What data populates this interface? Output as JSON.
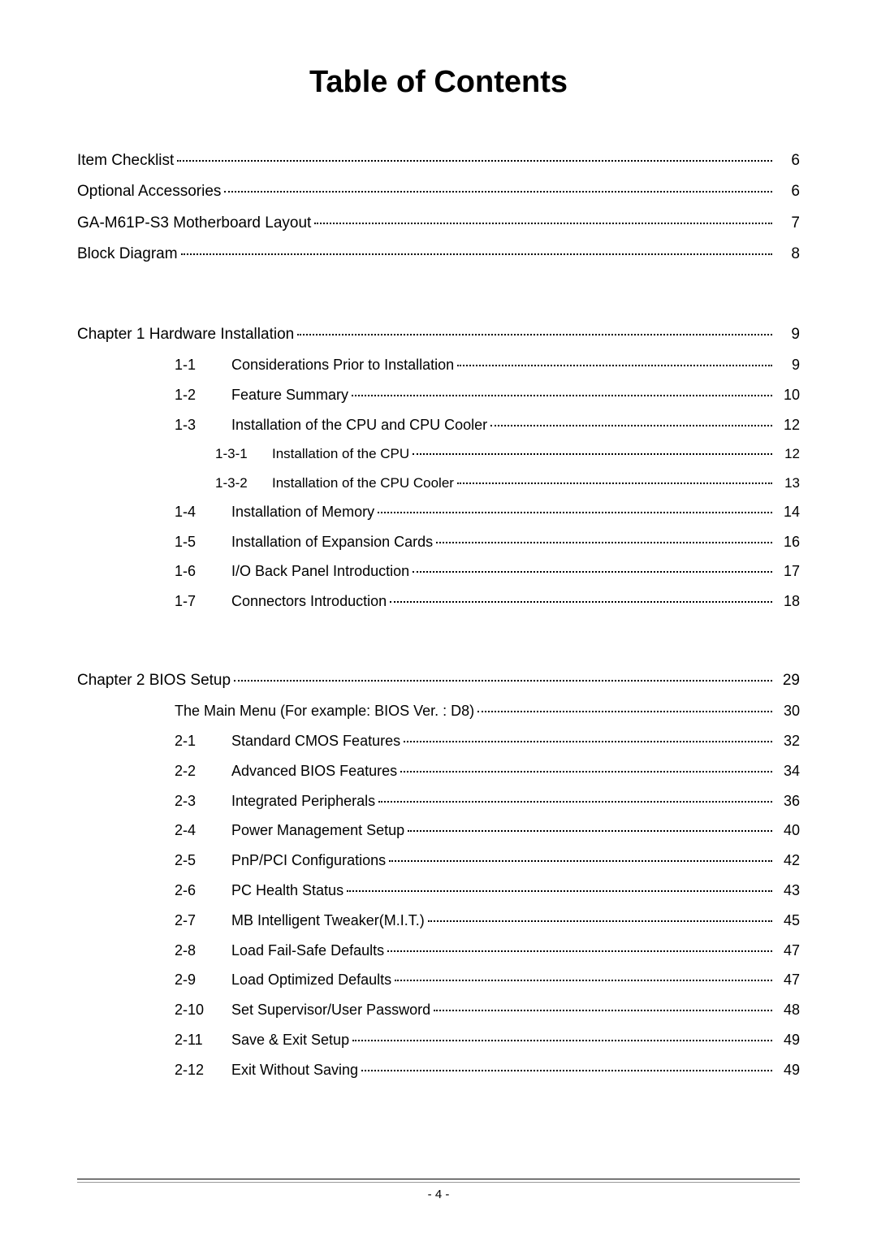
{
  "title": "Table of Contents",
  "colors": {
    "background": "#ffffff",
    "text": "#000000",
    "dots": "#000000"
  },
  "typography": {
    "title_fontsize": 38,
    "body_fontsize": 18,
    "font_family": "Arial"
  },
  "front_matter": [
    {
      "label": "Item Checklist",
      "page": "6"
    },
    {
      "label": "Optional Accessories",
      "page": "6"
    },
    {
      "label": "GA-M61P-S3 Motherboard Layout",
      "page": "7"
    },
    {
      "label": "Block Diagram",
      "page": "8"
    }
  ],
  "chapters": [
    {
      "label": "Chapter 1  Hardware Installation",
      "page": "9",
      "sections": [
        {
          "num": "1-1",
          "label": "Considerations Prior to Installation",
          "page": "9"
        },
        {
          "num": "1-2",
          "label": "Feature Summary",
          "page": "10"
        },
        {
          "num": "1-3",
          "label": "Installation of the CPU and CPU Cooler",
          "page": "12",
          "subsections": [
            {
              "num": "1-3-1",
              "label": "Installation of the CPU",
              "page": "12"
            },
            {
              "num": "1-3-2",
              "label": "Installation of the CPU Cooler",
              "page": "13"
            }
          ]
        },
        {
          "num": "1-4",
          "label": "Installation of Memory",
          "page": "14"
        },
        {
          "num": "1-5",
          "label": "Installation of Expansion Cards",
          "page": "16"
        },
        {
          "num": "1-6",
          "label": "I/O Back Panel Introduction",
          "page": "17"
        },
        {
          "num": "1-7",
          "label": "Connectors Introduction",
          "page": "18"
        }
      ]
    },
    {
      "label": "Chapter 2  BIOS Setup",
      "page": "29",
      "pre_sections": [
        {
          "label": "The Main Menu (For example: BIOS Ver. : D8)",
          "page": "30"
        }
      ],
      "sections": [
        {
          "num": "2-1",
          "label": "Standard CMOS Features",
          "page": "32"
        },
        {
          "num": "2-2",
          "label": "Advanced BIOS Features",
          "page": "34"
        },
        {
          "num": "2-3",
          "label": "Integrated Peripherals",
          "page": "36"
        },
        {
          "num": "2-4",
          "label": "Power Management Setup",
          "page": "40"
        },
        {
          "num": "2-5",
          "label": "PnP/PCI Configurations",
          "page": "42"
        },
        {
          "num": "2-6",
          "label": "PC Health Status",
          "page": "43"
        },
        {
          "num": "2-7",
          "label": "MB Intelligent Tweaker(M.I.T.)",
          "page": "45"
        },
        {
          "num": "2-8",
          "label": "Load Fail-Safe Defaults",
          "page": "47"
        },
        {
          "num": "2-9",
          "label": "Load Optimized Defaults",
          "page": "47"
        },
        {
          "num": "2-10",
          "label": "Set Supervisor/User Password",
          "page": "48"
        },
        {
          "num": "2-11",
          "label": "Save & Exit Setup",
          "page": "49"
        },
        {
          "num": "2-12",
          "label": "Exit Without Saving",
          "page": "49"
        }
      ]
    }
  ],
  "footer_page": "- 4 -"
}
